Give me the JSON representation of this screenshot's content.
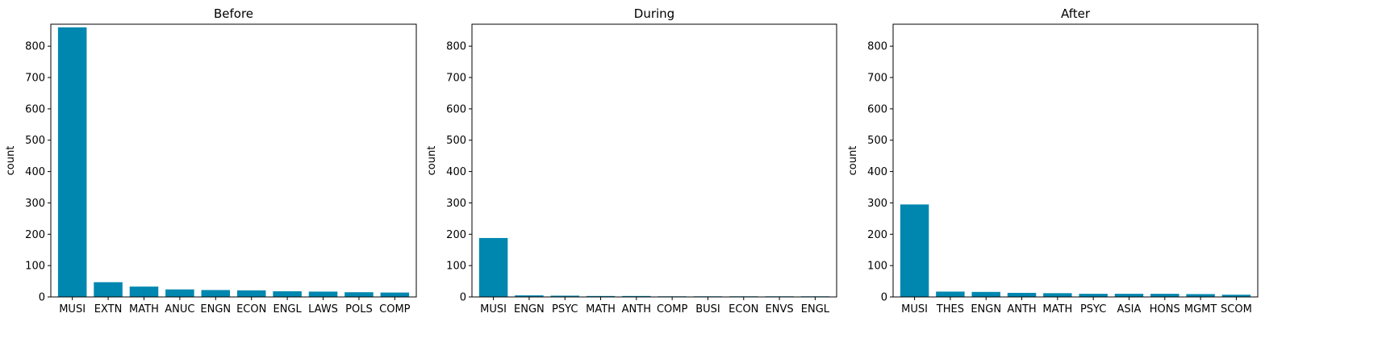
{
  "chart_data": [
    {
      "type": "bar",
      "title": "Before",
      "xlabel": "",
      "ylabel": "count",
      "ylim": [
        0,
        870
      ],
      "yticks": [
        0,
        100,
        200,
        300,
        400,
        500,
        600,
        700,
        800
      ],
      "categories": [
        "MUSI",
        "EXTN",
        "MATH",
        "ANUC",
        "ENGN",
        "ECON",
        "ENGL",
        "LAWS",
        "POLS",
        "COMP"
      ],
      "values": [
        860,
        47,
        33,
        24,
        22,
        21,
        18,
        17,
        15,
        14
      ],
      "color": "#0087b0"
    },
    {
      "type": "bar",
      "title": "During",
      "xlabel": "",
      "ylabel": "count",
      "ylim": [
        0,
        870
      ],
      "yticks": [
        0,
        100,
        200,
        300,
        400,
        500,
        600,
        700,
        800
      ],
      "categories": [
        "MUSI",
        "ENGN",
        "PSYC",
        "MATH",
        "ANTH",
        "COMP",
        "BUSI",
        "ECON",
        "ENVS",
        "ENGL"
      ],
      "values": [
        188,
        5,
        4,
        3,
        3,
        2,
        2,
        2,
        2,
        2
      ],
      "color": "#0087b0"
    },
    {
      "type": "bar",
      "title": "After",
      "xlabel": "",
      "ylabel": "count",
      "ylim": [
        0,
        870
      ],
      "yticks": [
        0,
        100,
        200,
        300,
        400,
        500,
        600,
        700,
        800
      ],
      "categories": [
        "MUSI",
        "THES",
        "ENGN",
        "ANTH",
        "MATH",
        "PSYC",
        "ASIA",
        "HONS",
        "MGMT",
        "SCOM"
      ],
      "values": [
        295,
        17,
        16,
        13,
        12,
        10,
        10,
        10,
        9,
        7
      ],
      "color": "#0087b0"
    }
  ]
}
